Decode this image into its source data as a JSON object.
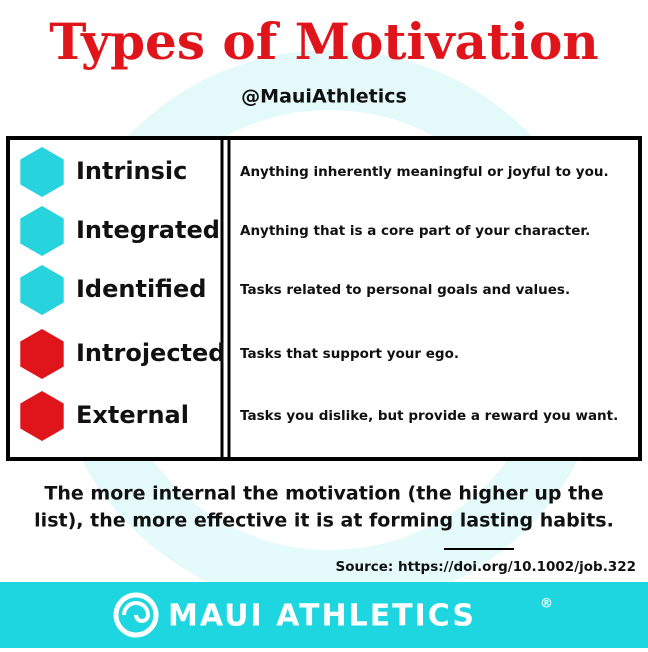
{
  "header": {
    "title": "Types of Motivation",
    "handle": "@MauiAthletics"
  },
  "rows": [
    {
      "label": "Intrinsic",
      "description": "Anything inherently meaningful or joyful to you.",
      "color": "#27d3dd"
    },
    {
      "label": "Integrated",
      "description": "Anything that is a core part of your character.",
      "color": "#27d3dd"
    },
    {
      "label": "Identified",
      "description": "Tasks related to personal goals and values.",
      "color": "#27d3dd"
    },
    {
      "label": "Introjected",
      "description": "Tasks that support your ego.",
      "color": "#e0141b"
    },
    {
      "label": "External",
      "description": "Tasks you dislike, but provide a reward you want.",
      "color": "#e0141b"
    }
  ],
  "footnote": [
    "The more internal the motivation (the higher up the",
    "list), the more effective it is at forming lasting habits."
  ],
  "source": "Source: https://doi.org/10.1002/job.322",
  "footer": {
    "brand": "MAUI ATHLETICS",
    "mark": "®"
  }
}
